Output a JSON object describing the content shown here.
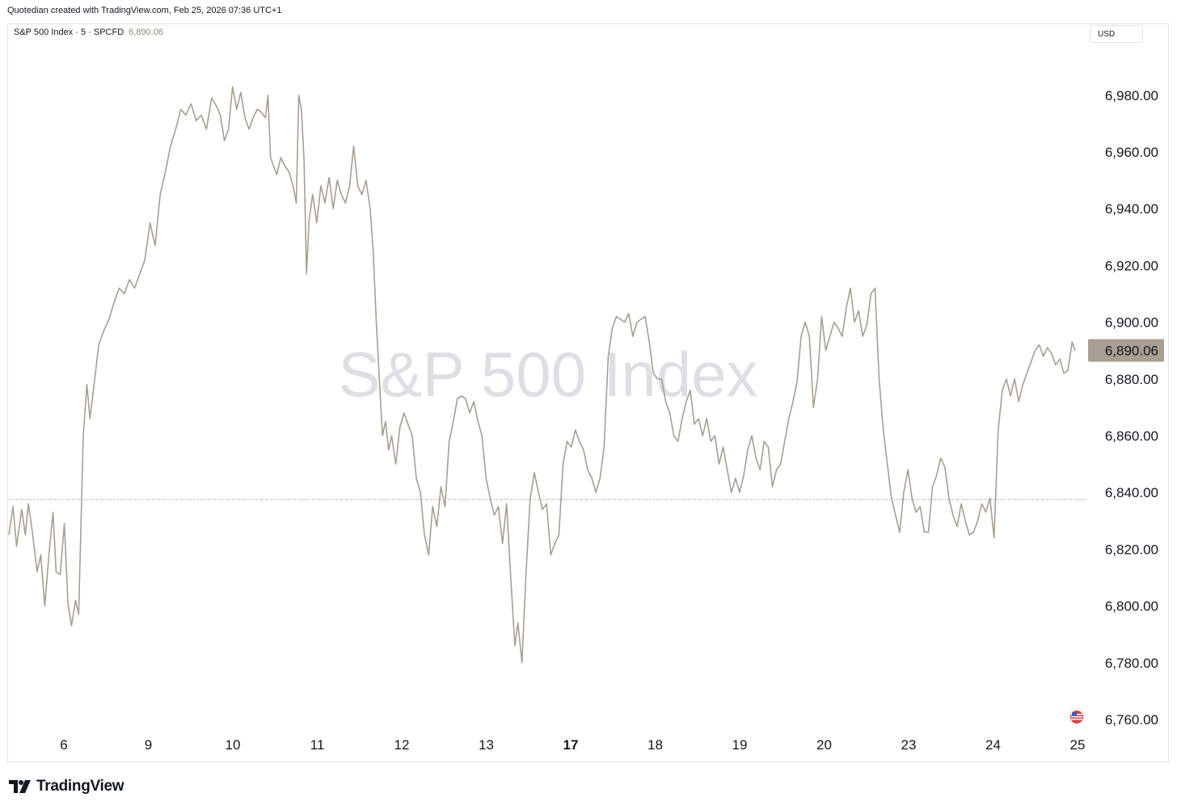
{
  "header": {
    "text": "Quotedian created with TradingView.com, Feb 25, 2026 07:36 UTC+1"
  },
  "legend": {
    "symbol": "S&P 500 Index · 5 · SPCFD",
    "last_price": "6,890.06"
  },
  "currency": "USD",
  "watermark": "S&P 500 Index",
  "brand": "TradingView",
  "colors": {
    "line": "#a89e91",
    "price_label_bg": "#a89e91",
    "grid": "#f0f3fa",
    "reference_line": "#787b86"
  },
  "chart_data": {
    "type": "line",
    "y_axis_ticks": [
      "6,760.00",
      "6,780.00",
      "6,800.00",
      "6,820.00",
      "6,840.00",
      "6,860.00",
      "6,880.00",
      "6,900.00",
      "6,920.00",
      "6,940.00",
      "6,960.00",
      "6,980.00"
    ],
    "ylim": [
      6756,
      7005
    ],
    "x_axis_ticks": [
      "6",
      "9",
      "10",
      "11",
      "12",
      "13",
      "17",
      "18",
      "19",
      "20",
      "23",
      "24",
      "25"
    ],
    "x_bold_ticks": [
      "17"
    ],
    "last_price_label": "6,890.06",
    "last_price_value": 6890.06,
    "reference_line_value": 6837.5,
    "series": [
      {
        "points": [
          [
            0.0,
            6825
          ],
          [
            0.08,
            6835
          ],
          [
            0.15,
            6821
          ],
          [
            0.25,
            6834
          ],
          [
            0.32,
            6825
          ],
          [
            0.38,
            6836
          ],
          [
            0.45,
            6827
          ],
          [
            0.55,
            6812
          ],
          [
            0.62,
            6818
          ],
          [
            0.7,
            6800
          ],
          [
            0.78,
            6818
          ],
          [
            0.86,
            6833
          ],
          [
            0.92,
            6812
          ],
          [
            1.0,
            6811
          ],
          [
            1.08,
            6829
          ],
          [
            1.15,
            6801
          ],
          [
            1.22,
            6793
          ],
          [
            1.3,
            6802
          ],
          [
            1.36,
            6797
          ],
          [
            1.45,
            6860
          ],
          [
            1.52,
            6878
          ],
          [
            1.58,
            6866
          ],
          [
            1.66,
            6878
          ],
          [
            1.75,
            6892
          ],
          [
            1.85,
            6897
          ],
          [
            1.95,
            6901
          ],
          [
            2.05,
            6907
          ],
          [
            2.15,
            6912
          ],
          [
            2.25,
            6910
          ],
          [
            2.35,
            6915
          ],
          [
            2.45,
            6912
          ],
          [
            2.55,
            6917
          ],
          [
            2.65,
            6922
          ],
          [
            2.75,
            6935
          ],
          [
            2.85,
            6927
          ],
          [
            2.95,
            6945
          ],
          [
            3.05,
            6953
          ],
          [
            3.15,
            6962
          ],
          [
            3.25,
            6968
          ],
          [
            3.35,
            6975
          ],
          [
            3.45,
            6973
          ],
          [
            3.55,
            6977
          ],
          [
            3.65,
            6971
          ],
          [
            3.75,
            6973
          ],
          [
            3.85,
            6968
          ],
          [
            3.95,
            6979
          ],
          [
            4.05,
            6976
          ],
          [
            4.12,
            6973
          ],
          [
            4.2,
            6964
          ],
          [
            4.28,
            6968
          ],
          [
            4.36,
            6983
          ],
          [
            4.44,
            6975
          ],
          [
            4.52,
            6981
          ],
          [
            4.6,
            6972
          ],
          [
            4.68,
            6968
          ],
          [
            4.76,
            6972
          ],
          [
            4.84,
            6975
          ],
          [
            4.92,
            6974
          ],
          [
            5.0,
            6972
          ],
          [
            5.05,
            6980
          ],
          [
            5.1,
            6958
          ],
          [
            5.16,
            6955
          ],
          [
            5.22,
            6952
          ],
          [
            5.3,
            6958
          ],
          [
            5.38,
            6955
          ],
          [
            5.46,
            6953
          ],
          [
            5.54,
            6948
          ],
          [
            5.6,
            6942
          ],
          [
            5.65,
            6980
          ],
          [
            5.7,
            6975
          ],
          [
            5.75,
            6958
          ],
          [
            5.8,
            6917
          ],
          [
            5.85,
            6936
          ],
          [
            5.92,
            6945
          ],
          [
            6.0,
            6935
          ],
          [
            6.08,
            6948
          ],
          [
            6.16,
            6942
          ],
          [
            6.24,
            6951
          ],
          [
            6.32,
            6940
          ],
          [
            6.4,
            6950
          ],
          [
            6.48,
            6945
          ],
          [
            6.56,
            6942
          ],
          [
            6.64,
            6948
          ],
          [
            6.72,
            6962
          ],
          [
            6.8,
            6948
          ],
          [
            6.88,
            6945
          ],
          [
            6.96,
            6950
          ],
          [
            7.04,
            6940
          ],
          [
            7.1,
            6925
          ],
          [
            7.16,
            6900
          ],
          [
            7.22,
            6880
          ],
          [
            7.28,
            6860
          ],
          [
            7.34,
            6865
          ],
          [
            7.4,
            6855
          ],
          [
            7.46,
            6860
          ],
          [
            7.54,
            6850
          ],
          [
            7.62,
            6863
          ],
          [
            7.7,
            6868
          ],
          [
            7.78,
            6864
          ],
          [
            7.86,
            6860
          ],
          [
            7.94,
            6845
          ],
          [
            8.02,
            6840
          ],
          [
            8.1,
            6825
          ],
          [
            8.18,
            6818
          ],
          [
            8.26,
            6835
          ],
          [
            8.34,
            6828
          ],
          [
            8.42,
            6842
          ],
          [
            8.5,
            6835
          ],
          [
            8.58,
            6858
          ],
          [
            8.66,
            6865
          ],
          [
            8.74,
            6873
          ],
          [
            8.82,
            6874
          ],
          [
            8.9,
            6873
          ],
          [
            8.98,
            6868
          ],
          [
            9.06,
            6872
          ],
          [
            9.14,
            6865
          ],
          [
            9.22,
            6860
          ],
          [
            9.3,
            6845
          ],
          [
            9.38,
            6838
          ],
          [
            9.46,
            6832
          ],
          [
            9.54,
            6835
          ],
          [
            9.62,
            6822
          ],
          [
            9.7,
            6836
          ],
          [
            9.78,
            6810
          ],
          [
            9.86,
            6786
          ],
          [
            9.92,
            6794
          ],
          [
            10.0,
            6780
          ],
          [
            10.08,
            6812
          ],
          [
            10.16,
            6838
          ],
          [
            10.24,
            6847
          ],
          [
            10.32,
            6840
          ],
          [
            10.4,
            6834
          ],
          [
            10.48,
            6836
          ],
          [
            10.56,
            6818
          ],
          [
            10.64,
            6822
          ],
          [
            10.72,
            6825
          ],
          [
            10.8,
            6850
          ],
          [
            10.88,
            6858
          ],
          [
            10.96,
            6856
          ],
          [
            11.04,
            6862
          ],
          [
            11.12,
            6858
          ],
          [
            11.2,
            6855
          ],
          [
            11.28,
            6848
          ],
          [
            11.36,
            6845
          ],
          [
            11.44,
            6840
          ],
          [
            11.52,
            6845
          ],
          [
            11.6,
            6856
          ],
          [
            11.68,
            6888
          ],
          [
            11.76,
            6898
          ],
          [
            11.84,
            6902
          ],
          [
            11.92,
            6901
          ],
          [
            12.0,
            6900
          ],
          [
            12.08,
            6903
          ],
          [
            12.16,
            6895
          ],
          [
            12.24,
            6900
          ],
          [
            12.32,
            6901
          ],
          [
            12.4,
            6902
          ],
          [
            12.48,
            6893
          ],
          [
            12.56,
            6882
          ],
          [
            12.64,
            6880
          ],
          [
            12.72,
            6880
          ],
          [
            12.8,
            6872
          ],
          [
            12.88,
            6868
          ],
          [
            12.96,
            6860
          ],
          [
            13.04,
            6858
          ],
          [
            13.12,
            6866
          ],
          [
            13.2,
            6872
          ],
          [
            13.28,
            6876
          ],
          [
            13.36,
            6864
          ],
          [
            13.44,
            6866
          ],
          [
            13.52,
            6860
          ],
          [
            13.6,
            6866
          ],
          [
            13.68,
            6858
          ],
          [
            13.76,
            6860
          ],
          [
            13.84,
            6850
          ],
          [
            13.92,
            6856
          ],
          [
            14.0,
            6848
          ],
          [
            14.08,
            6840
          ],
          [
            14.16,
            6845
          ],
          [
            14.24,
            6840
          ],
          [
            14.32,
            6846
          ],
          [
            14.4,
            6855
          ],
          [
            14.48,
            6860
          ],
          [
            14.56,
            6852
          ],
          [
            14.64,
            6848
          ],
          [
            14.72,
            6858
          ],
          [
            14.8,
            6856
          ],
          [
            14.88,
            6842
          ],
          [
            14.96,
            6848
          ],
          [
            15.04,
            6850
          ],
          [
            15.12,
            6858
          ],
          [
            15.2,
            6866
          ],
          [
            15.28,
            6872
          ],
          [
            15.36,
            6879
          ],
          [
            15.44,
            6895
          ],
          [
            15.52,
            6900
          ],
          [
            15.6,
            6895
          ],
          [
            15.68,
            6870
          ],
          [
            15.76,
            6880
          ],
          [
            15.84,
            6902
          ],
          [
            15.92,
            6890
          ],
          [
            16.0,
            6895
          ],
          [
            16.08,
            6900
          ],
          [
            16.16,
            6898
          ],
          [
            16.24,
            6895
          ],
          [
            16.32,
            6905
          ],
          [
            16.4,
            6912
          ],
          [
            16.48,
            6900
          ],
          [
            16.56,
            6904
          ],
          [
            16.64,
            6895
          ],
          [
            16.72,
            6899
          ],
          [
            16.8,
            6910
          ],
          [
            16.88,
            6912
          ],
          [
            16.96,
            6880
          ],
          [
            17.04,
            6862
          ],
          [
            17.12,
            6850
          ],
          [
            17.2,
            6838
          ],
          [
            17.28,
            6832
          ],
          [
            17.36,
            6826
          ],
          [
            17.44,
            6840
          ],
          [
            17.52,
            6848
          ],
          [
            17.6,
            6838
          ],
          [
            17.68,
            6833
          ],
          [
            17.76,
            6835
          ],
          [
            17.84,
            6826
          ],
          [
            17.92,
            6826
          ],
          [
            18.0,
            6842
          ],
          [
            18.08,
            6846
          ],
          [
            18.16,
            6852
          ],
          [
            18.24,
            6849
          ],
          [
            18.32,
            6838
          ],
          [
            18.4,
            6832
          ],
          [
            18.48,
            6828
          ],
          [
            18.56,
            6836
          ],
          [
            18.64,
            6830
          ],
          [
            18.72,
            6825
          ],
          [
            18.8,
            6826
          ],
          [
            18.88,
            6830
          ],
          [
            18.96,
            6836
          ],
          [
            19.04,
            6833
          ],
          [
            19.12,
            6838
          ],
          [
            19.2,
            6824
          ],
          [
            19.28,
            6862
          ],
          [
            19.36,
            6876
          ],
          [
            19.44,
            6880
          ],
          [
            19.52,
            6874
          ],
          [
            19.6,
            6880
          ],
          [
            19.68,
            6872
          ],
          [
            19.76,
            6878
          ],
          [
            19.84,
            6882
          ],
          [
            19.92,
            6886
          ],
          [
            20.0,
            6890
          ],
          [
            20.08,
            6892
          ],
          [
            20.16,
            6888
          ],
          [
            20.24,
            6891
          ],
          [
            20.32,
            6889
          ],
          [
            20.4,
            6885
          ],
          [
            20.48,
            6887
          ],
          [
            20.56,
            6882
          ],
          [
            20.64,
            6883
          ],
          [
            20.72,
            6893
          ],
          [
            20.78,
            6890
          ]
        ]
      }
    ]
  }
}
